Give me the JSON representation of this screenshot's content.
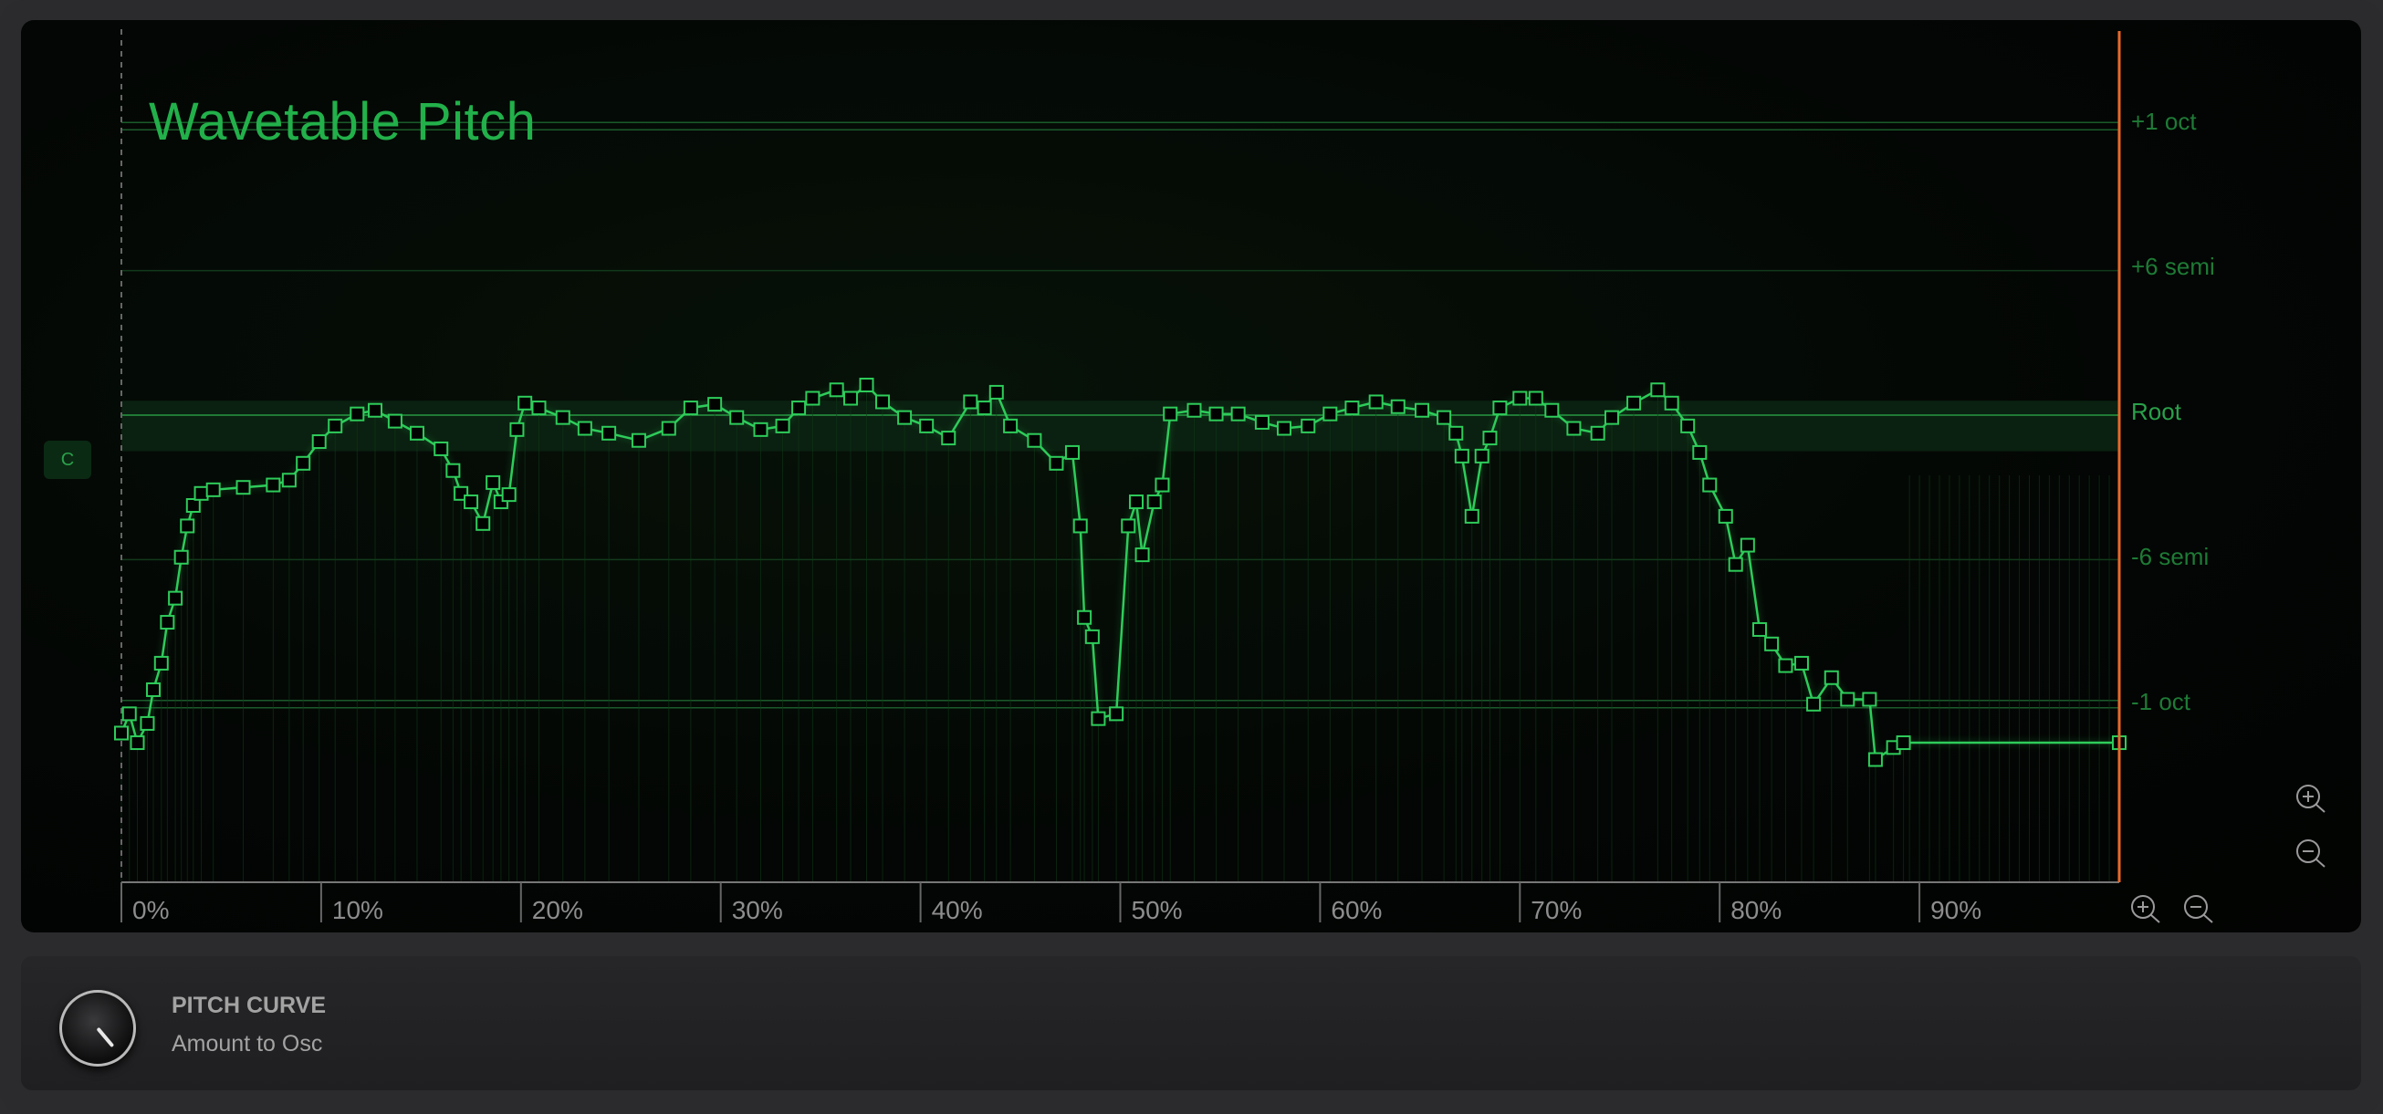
{
  "title": "Wavetable Pitch",
  "key_button": "C",
  "y_labels": {
    "plus_oct": "+1 oct",
    "plus_semi": "+6 semi",
    "root": "Root",
    "minus_semi": "-6 semi",
    "minus_oct": "-1 oct"
  },
  "x_labels": [
    "0%",
    "10%",
    "20%",
    "30%",
    "40%",
    "50%",
    "60%",
    "70%",
    "80%",
    "90%"
  ],
  "bottom": {
    "param_title": "PITCH CURVE",
    "param_sub": "Amount to Osc"
  },
  "colors": {
    "curve": "#2ecc5a",
    "title": "#22b04a",
    "playhead": "#e8692a"
  },
  "icons": {
    "zoom_in": "zoom-in-icon",
    "zoom_out": "zoom-out-icon"
  },
  "chart_data": {
    "type": "line",
    "title": "Wavetable Pitch",
    "x_unit": "%",
    "y_unit": "semitones",
    "xlim": [
      0,
      100
    ],
    "ylim": [
      -17,
      15
    ],
    "y_ticks": [
      12,
      6,
      0,
      -6,
      -12
    ],
    "points": [
      [
        0,
        -13.2
      ],
      [
        0.4,
        -12.4
      ],
      [
        0.8,
        -13.6
      ],
      [
        1.3,
        -12.8
      ],
      [
        1.6,
        -11.4
      ],
      [
        2.0,
        -10.3
      ],
      [
        2.3,
        -8.6
      ],
      [
        2.7,
        -7.6
      ],
      [
        3.0,
        -5.9
      ],
      [
        3.3,
        -4.6
      ],
      [
        3.6,
        -3.75
      ],
      [
        4.0,
        -3.25
      ],
      [
        4.6,
        -3.1
      ],
      [
        6.1,
        -3.0
      ],
      [
        7.6,
        -2.9
      ],
      [
        8.4,
        -2.7
      ],
      [
        9.1,
        -2.0
      ],
      [
        9.9,
        -1.1
      ],
      [
        10.7,
        -0.45
      ],
      [
        11.8,
        0.05
      ],
      [
        12.7,
        0.2
      ],
      [
        13.7,
        -0.25
      ],
      [
        14.8,
        -0.75
      ],
      [
        16.0,
        -1.4
      ],
      [
        16.6,
        -2.3
      ],
      [
        17.0,
        -3.25
      ],
      [
        17.5,
        -3.6
      ],
      [
        18.1,
        -4.5
      ],
      [
        18.6,
        -2.8
      ],
      [
        19.0,
        -3.6
      ],
      [
        19.4,
        -3.3
      ],
      [
        19.8,
        -0.6
      ],
      [
        20.2,
        0.5
      ],
      [
        20.9,
        0.3
      ],
      [
        22.1,
        -0.1
      ],
      [
        23.2,
        -0.55
      ],
      [
        24.4,
        -0.75
      ],
      [
        25.9,
        -1.05
      ],
      [
        27.4,
        -0.55
      ],
      [
        28.5,
        0.3
      ],
      [
        29.7,
        0.45
      ],
      [
        30.8,
        -0.1
      ],
      [
        32.0,
        -0.6
      ],
      [
        33.1,
        -0.45
      ],
      [
        33.9,
        0.3
      ],
      [
        34.6,
        0.7
      ],
      [
        35.8,
        1.05
      ],
      [
        36.5,
        0.7
      ],
      [
        37.3,
        1.25
      ],
      [
        38.1,
        0.55
      ],
      [
        39.2,
        -0.1
      ],
      [
        40.3,
        -0.45
      ],
      [
        41.4,
        -0.95
      ],
      [
        42.5,
        0.55
      ],
      [
        43.2,
        0.3
      ],
      [
        43.8,
        0.95
      ],
      [
        44.5,
        -0.45
      ],
      [
        45.7,
        -1.05
      ],
      [
        46.8,
        -2.0
      ],
      [
        47.6,
        -1.55
      ],
      [
        48.0,
        -4.6
      ],
      [
        48.2,
        -8.4
      ],
      [
        48.6,
        -9.2
      ],
      [
        48.9,
        -12.6
      ],
      [
        49.8,
        -12.4
      ],
      [
        50.4,
        -4.6
      ],
      [
        50.8,
        -3.6
      ],
      [
        51.1,
        -5.8
      ],
      [
        51.7,
        -3.6
      ],
      [
        52.1,
        -2.9
      ],
      [
        52.5,
        0.05
      ],
      [
        53.7,
        0.2
      ],
      [
        54.8,
        0.05
      ],
      [
        55.9,
        0.05
      ],
      [
        57.1,
        -0.3
      ],
      [
        58.2,
        -0.55
      ],
      [
        59.4,
        -0.45
      ],
      [
        60.5,
        0.05
      ],
      [
        61.6,
        0.3
      ],
      [
        62.8,
        0.55
      ],
      [
        63.9,
        0.35
      ],
      [
        65.1,
        0.2
      ],
      [
        66.2,
        -0.1
      ],
      [
        66.8,
        -0.75
      ],
      [
        67.1,
        -1.7
      ],
      [
        67.6,
        -4.2
      ],
      [
        68.1,
        -1.7
      ],
      [
        68.5,
        -0.95
      ],
      [
        69.0,
        0.3
      ],
      [
        70.0,
        0.7
      ],
      [
        70.8,
        0.7
      ],
      [
        71.6,
        0.2
      ],
      [
        72.7,
        -0.55
      ],
      [
        73.9,
        -0.75
      ],
      [
        74.6,
        -0.1
      ],
      [
        75.7,
        0.5
      ],
      [
        76.9,
        1.05
      ],
      [
        77.6,
        0.5
      ],
      [
        78.4,
        -0.45
      ],
      [
        79.0,
        -1.55
      ],
      [
        79.5,
        -2.9
      ],
      [
        80.3,
        -4.2
      ],
      [
        80.8,
        -6.2
      ],
      [
        81.4,
        -5.4
      ],
      [
        82.0,
        -8.9
      ],
      [
        82.6,
        -9.5
      ],
      [
        83.3,
        -10.4
      ],
      [
        84.1,
        -10.3
      ],
      [
        84.7,
        -12.0
      ],
      [
        85.6,
        -10.9
      ],
      [
        86.4,
        -11.8
      ],
      [
        87.5,
        -11.8
      ],
      [
        87.8,
        -14.3
      ],
      [
        88.7,
        -13.8
      ],
      [
        89.2,
        -13.6
      ],
      [
        100,
        -13.6
      ]
    ]
  }
}
